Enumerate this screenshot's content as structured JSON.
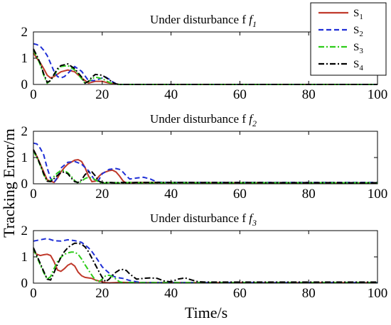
{
  "figure": {
    "ylabel": "Tracking Error/m",
    "xlabel": "Time/s"
  },
  "legend": {
    "placement": "top-right",
    "entries": [
      {
        "label": "S",
        "sub": "1",
        "color": "#c0392b",
        "dash": "solid"
      },
      {
        "label": "S",
        "sub": "2",
        "color": "#1f2fd6",
        "dash": "dashed"
      },
      {
        "label": "S",
        "sub": "3",
        "color": "#2ecc1a",
        "dash": "dashdot"
      },
      {
        "label": "S",
        "sub": "4",
        "color": "#000000",
        "dash": "dashdot"
      }
    ]
  },
  "chart_data": [
    {
      "type": "line",
      "title": "Under disturbance f",
      "title_sub": "1",
      "xlim": [
        0,
        100
      ],
      "ylim": [
        0,
        2
      ],
      "xticks": [
        "0",
        "20",
        "40",
        "60",
        "80",
        "100"
      ],
      "yticks": [
        "0",
        "1",
        "2"
      ],
      "grid": false,
      "series": [
        {
          "name": "S1",
          "x": [
            0,
            1,
            2,
            3,
            4,
            5,
            6,
            8,
            10,
            12,
            14,
            16,
            18,
            20,
            22,
            24,
            25,
            100
          ],
          "y": [
            1.2,
            1.0,
            0.82,
            0.6,
            0.35,
            0.25,
            0.3,
            0.48,
            0.55,
            0.48,
            0.25,
            0.05,
            0.12,
            0.12,
            0.05,
            0.02,
            0,
            0
          ]
        },
        {
          "name": "S2",
          "x": [
            0,
            1,
            2,
            3,
            4,
            5,
            6,
            7,
            8,
            9,
            10,
            12,
            14,
            16,
            18,
            20,
            21,
            22,
            23,
            24,
            25,
            100
          ],
          "y": [
            1.55,
            1.52,
            1.45,
            1.3,
            1.1,
            0.8,
            0.5,
            0.3,
            0.25,
            0.3,
            0.42,
            0.68,
            0.5,
            0.15,
            0.15,
            0.25,
            0.28,
            0.2,
            0.1,
            0.03,
            0,
            0
          ]
        },
        {
          "name": "S3",
          "x": [
            0,
            1,
            2,
            3,
            4,
            5,
            6,
            7,
            8,
            10,
            12,
            14,
            15,
            16,
            17,
            18,
            20,
            22,
            23,
            24,
            25,
            100
          ],
          "y": [
            1.3,
            1.05,
            0.75,
            0.35,
            0.05,
            0.15,
            0.35,
            0.55,
            0.68,
            0.72,
            0.55,
            0.22,
            0.05,
            0.1,
            0.22,
            0.28,
            0.22,
            0.08,
            0.03,
            0.01,
            0,
            0
          ]
        },
        {
          "name": "S4",
          "x": [
            0,
            1,
            2,
            3,
            4,
            5,
            6,
            7,
            8,
            10,
            12,
            14,
            15,
            16,
            17,
            18,
            20,
            22,
            23,
            24,
            25,
            100
          ],
          "y": [
            1.35,
            1.1,
            0.8,
            0.4,
            0.08,
            0.15,
            0.38,
            0.6,
            0.72,
            0.78,
            0.6,
            0.28,
            0.05,
            0.12,
            0.28,
            0.38,
            0.35,
            0.18,
            0.08,
            0.02,
            0,
            0
          ]
        }
      ]
    },
    {
      "type": "line",
      "title": "Under disturbance f",
      "title_sub": "2",
      "xlim": [
        0,
        100
      ],
      "ylim": [
        0,
        2
      ],
      "xticks": [
        "0",
        "20",
        "40",
        "60",
        "80",
        "100"
      ],
      "yticks": [
        "0",
        "1",
        "2"
      ],
      "grid": false,
      "series": [
        {
          "name": "S1",
          "x": [
            0,
            1,
            2,
            3,
            4,
            5,
            6,
            7,
            8,
            9,
            10,
            12,
            13,
            14,
            15,
            16,
            17,
            18,
            19,
            20,
            21,
            22,
            23,
            24,
            25,
            26,
            27,
            28,
            29,
            30,
            100
          ],
          "y": [
            1.3,
            1.05,
            0.75,
            0.45,
            0.15,
            0.1,
            0.05,
            0.22,
            0.45,
            0.62,
            0.75,
            0.9,
            0.92,
            0.85,
            0.62,
            0.3,
            0.08,
            0.1,
            0.28,
            0.4,
            0.45,
            0.5,
            0.52,
            0.45,
            0.3,
            0.12,
            0.02,
            0.05,
            0.04,
            0.05,
            0.03
          ]
        },
        {
          "name": "S2",
          "x": [
            0,
            1,
            2,
            3,
            4,
            5,
            6,
            7,
            8,
            10,
            12,
            14,
            16,
            17,
            18,
            19,
            20,
            22,
            24,
            25,
            26,
            27,
            28,
            30,
            32,
            34,
            36,
            40,
            100
          ],
          "y": [
            1.55,
            1.52,
            1.35,
            1.1,
            0.6,
            0.2,
            0.05,
            0.25,
            0.6,
            0.82,
            0.85,
            0.75,
            0.5,
            0.3,
            0.1,
            0.15,
            0.38,
            0.55,
            0.58,
            0.55,
            0.45,
            0.3,
            0.18,
            0.22,
            0.25,
            0.18,
            0.06,
            0.05,
            0.05
          ]
        },
        {
          "name": "S3",
          "x": [
            0,
            1,
            2,
            3,
            4,
            5,
            6,
            7,
            8,
            9,
            10,
            11,
            12,
            13,
            14,
            15,
            16,
            17,
            18,
            19,
            20,
            22,
            24,
            26,
            28,
            30,
            100
          ],
          "y": [
            1.25,
            1.0,
            0.7,
            0.35,
            0.08,
            0.12,
            0.28,
            0.42,
            0.5,
            0.5,
            0.42,
            0.28,
            0.12,
            0.02,
            0.1,
            0.2,
            0.25,
            0.22,
            0.15,
            0.06,
            0.02,
            0.05,
            0.04,
            0.03,
            0.05,
            0.04,
            0.04
          ]
        },
        {
          "name": "S4",
          "x": [
            0,
            1,
            2,
            3,
            4,
            5,
            6,
            7,
            8,
            9,
            10,
            11,
            12,
            13,
            14,
            15,
            16,
            17,
            18,
            19,
            20,
            22,
            24,
            26,
            28,
            30,
            100
          ],
          "y": [
            1.3,
            1.05,
            0.72,
            0.38,
            0.1,
            0.08,
            0.2,
            0.32,
            0.42,
            0.45,
            0.38,
            0.22,
            0.08,
            0.05,
            0.15,
            0.35,
            0.45,
            0.45,
            0.3,
            0.1,
            0.05,
            0.05,
            0.04,
            0.05,
            0.04,
            0.05,
            0.04
          ]
        }
      ]
    },
    {
      "type": "line",
      "title": "Under disturbance f",
      "title_sub": "3",
      "xlim": [
        0,
        100
      ],
      "ylim": [
        0,
        2
      ],
      "xticks": [
        "0",
        "20",
        "40",
        "60",
        "80",
        "100"
      ],
      "yticks": [
        "0",
        "1",
        "2"
      ],
      "grid": false,
      "series": [
        {
          "name": "S1",
          "x": [
            0,
            1,
            2,
            3,
            4,
            5,
            6,
            7,
            8,
            9,
            10,
            11,
            12,
            13,
            14,
            15,
            16,
            17,
            18,
            19,
            20,
            21,
            22,
            24,
            26,
            28,
            30,
            100
          ],
          "y": [
            1.2,
            1.1,
            1.05,
            1.08,
            1.1,
            1.05,
            0.82,
            0.5,
            0.45,
            0.55,
            0.68,
            0.75,
            0.65,
            0.42,
            0.28,
            0.22,
            0.2,
            0.18,
            0.12,
            0.08,
            0.05,
            0.02,
            0.01,
            0.02,
            0.03,
            0.02,
            0.02,
            0.02
          ]
        },
        {
          "name": "S2",
          "x": [
            0,
            2,
            4,
            6,
            8,
            10,
            12,
            14,
            16,
            17,
            18,
            19,
            20,
            21,
            22,
            23,
            24,
            25,
            26,
            28,
            30,
            32,
            34,
            100
          ],
          "y": [
            1.6,
            1.65,
            1.7,
            1.62,
            1.6,
            1.65,
            1.62,
            1.55,
            1.35,
            1.2,
            1.02,
            0.82,
            0.62,
            0.5,
            0.38,
            0.28,
            0.22,
            0.2,
            0.18,
            0.1,
            0.05,
            0.02,
            0.02,
            0.02
          ]
        },
        {
          "name": "S3",
          "x": [
            0,
            1,
            2,
            3,
            4,
            5,
            6,
            7,
            8,
            9,
            10,
            11,
            12,
            13,
            14,
            15,
            16,
            17,
            18,
            19,
            20,
            21,
            22,
            23,
            24,
            25,
            26,
            28,
            30,
            100
          ],
          "y": [
            1.3,
            1.0,
            0.7,
            0.4,
            0.15,
            0.25,
            0.55,
            0.82,
            0.98,
            1.1,
            1.15,
            1.18,
            1.18,
            1.1,
            0.92,
            0.7,
            0.5,
            0.3,
            0.12,
            0.05,
            0.15,
            0.28,
            0.3,
            0.25,
            0.15,
            0.05,
            0.02,
            0.03,
            0.02,
            0.02
          ]
        },
        {
          "name": "S4",
          "x": [
            0,
            1,
            2,
            3,
            4,
            5,
            6,
            7,
            8,
            9,
            10,
            11,
            12,
            13,
            14,
            15,
            16,
            17,
            18,
            19,
            20,
            21,
            22,
            23,
            24,
            25,
            26,
            27,
            28,
            30,
            32,
            34,
            36,
            38,
            40,
            42,
            44,
            46,
            48,
            50,
            100
          ],
          "y": [
            1.35,
            1.05,
            0.75,
            0.45,
            0.15,
            0.12,
            0.4,
            0.72,
            0.98,
            1.2,
            1.35,
            1.45,
            1.52,
            1.52,
            1.48,
            1.38,
            1.2,
            0.95,
            0.7,
            0.45,
            0.22,
            0.05,
            0.15,
            0.3,
            0.42,
            0.5,
            0.52,
            0.48,
            0.35,
            0.15,
            0.18,
            0.2,
            0.18,
            0.08,
            0.05,
            0.15,
            0.2,
            0.12,
            0.05,
            0.04,
            0.04
          ]
        }
      ]
    }
  ]
}
